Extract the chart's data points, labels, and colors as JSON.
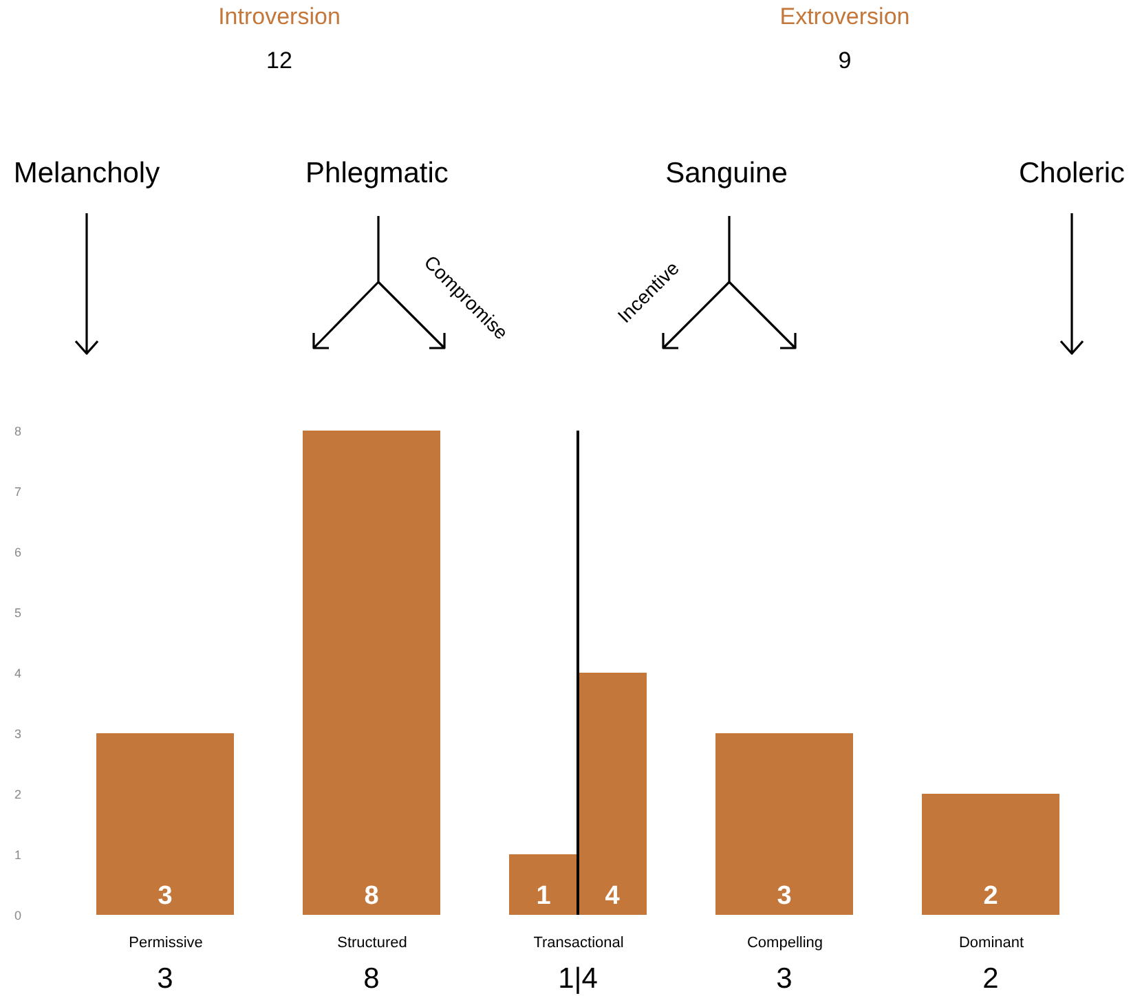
{
  "chart_data": {
    "type": "bar",
    "categories": [
      "Permissive",
      "Structured",
      "Transactional",
      "Compelling",
      "Dominant"
    ],
    "series": [
      {
        "color": "#c4773b",
        "values": [
          3,
          8,
          1,
          3,
          2
        ]
      },
      {
        "color": "#c4773b",
        "values": [
          null,
          null,
          4,
          null,
          null
        ]
      }
    ],
    "ylim": [
      0,
      8
    ],
    "yticks": [
      0,
      1,
      2,
      3,
      4,
      5,
      6,
      7,
      8
    ],
    "grid": false,
    "data_labels": true,
    "ref_lines": [
      {
        "axis": "x",
        "value": "Transactional",
        "color": "#000000"
      }
    ],
    "annotations": [
      "Introversion",
      "12",
      "Extroversion",
      "9",
      "Melancholy",
      "Phlegmatic",
      "Sanguine",
      "Choleric",
      "Compromise",
      "Incentive",
      "3",
      "8",
      "1|4",
      "3",
      "2"
    ]
  }
}
